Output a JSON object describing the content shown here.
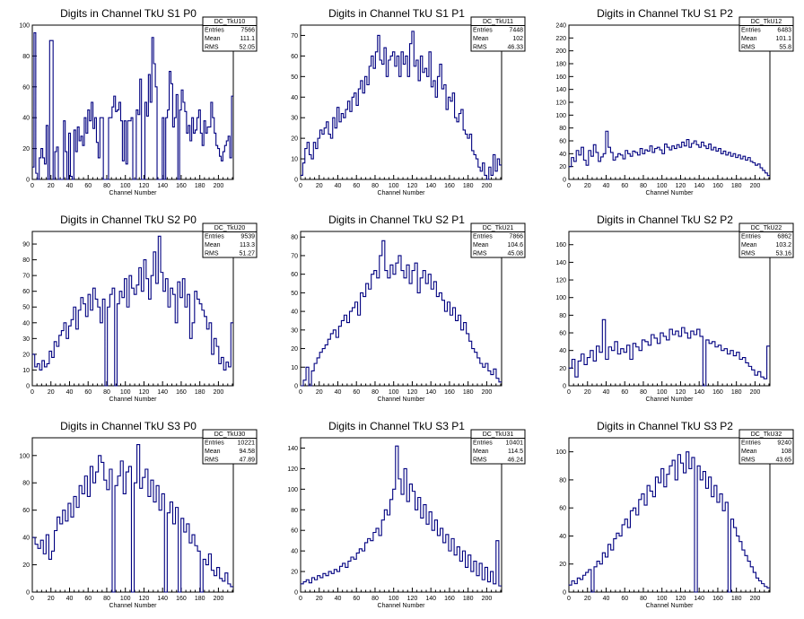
{
  "colors": {
    "line": "#000080",
    "axis": "#000000",
    "background": "#ffffff"
  },
  "stat_labels": {
    "entries": "Entries",
    "mean": "Mean",
    "rms": "RMS"
  },
  "chart_data": [
    {
      "type": "histogram",
      "title": "Digits in Channel TkU S1 P0",
      "xlabel": "Channel Number",
      "stats": {
        "name": "DC_TkU10",
        "entries": "7566",
        "mean": "111.1",
        "rms": "52.05"
      },
      "xlim": [
        0,
        216
      ],
      "ylim": [
        0,
        100
      ],
      "xticks": [
        0,
        20,
        40,
        60,
        80,
        100,
        120,
        140,
        160,
        180,
        200
      ],
      "yticks": [
        0,
        20,
        40,
        60,
        80,
        100
      ],
      "values": [
        8,
        95,
        4,
        0,
        14,
        20,
        14,
        10,
        35,
        0,
        90,
        90,
        0,
        18,
        21,
        0,
        0,
        0,
        38,
        18,
        0,
        30,
        2,
        0,
        32,
        18,
        34,
        25,
        28,
        22,
        40,
        30,
        45,
        38,
        50,
        33,
        40,
        24,
        14,
        40,
        40,
        0,
        0,
        0,
        40,
        40,
        47,
        54,
        44,
        45,
        50,
        38,
        12,
        38,
        10,
        38,
        38,
        40,
        0,
        0,
        45,
        42,
        65,
        0,
        0,
        50,
        41,
        68,
        50,
        92,
        75,
        60,
        0,
        0,
        0,
        40,
        0,
        40,
        45,
        70,
        62,
        34,
        40,
        55,
        0,
        45,
        58,
        50,
        44,
        30,
        35,
        25,
        40,
        30,
        32,
        40,
        45,
        30,
        22,
        38,
        30,
        34,
        34,
        50,
        40,
        30,
        22,
        20,
        15,
        12,
        18,
        22,
        25,
        28,
        14,
        54
      ]
    },
    {
      "type": "histogram",
      "title": "Digits in Channel TkU S1 P1",
      "xlabel": "Channel Number",
      "stats": {
        "name": "DC_TkU11",
        "entries": "7448",
        "mean": "102",
        "rms": "46.33"
      },
      "xlim": [
        0,
        216
      ],
      "ylim": [
        0,
        75
      ],
      "xticks": [
        0,
        20,
        40,
        60,
        80,
        100,
        120,
        140,
        160,
        180,
        200
      ],
      "yticks": [
        0,
        10,
        20,
        30,
        40,
        50,
        60,
        70
      ],
      "values": [
        2,
        8,
        15,
        18,
        12,
        10,
        18,
        15,
        20,
        24,
        22,
        25,
        28,
        22,
        20,
        30,
        25,
        35,
        28,
        32,
        30,
        34,
        38,
        33,
        40,
        42,
        36,
        44,
        48,
        42,
        50,
        46,
        55,
        60,
        54,
        62,
        70,
        58,
        56,
        64,
        50,
        58,
        60,
        62,
        55,
        60,
        50,
        62,
        56,
        60,
        50,
        66,
        72,
        55,
        58,
        48,
        60,
        52,
        54,
        50,
        62,
        45,
        48,
        40,
        50,
        56,
        44,
        46,
        34,
        40,
        38,
        42,
        30,
        28,
        32,
        34,
        24,
        22,
        20,
        22,
        14,
        12,
        10,
        6,
        4,
        8,
        2,
        0,
        6,
        2,
        12,
        4,
        10,
        7
      ]
    },
    {
      "type": "histogram",
      "title": "Digits in Channel TkU S1 P2",
      "xlabel": "Channel Number",
      "stats": {
        "name": "DC_TkU12",
        "entries": "6483",
        "mean": "101.1",
        "rms": "55.8"
      },
      "xlim": [
        0,
        216
      ],
      "ylim": [
        0,
        240
      ],
      "xticks": [
        0,
        20,
        40,
        60,
        80,
        100,
        120,
        140,
        160,
        180,
        200
      ],
      "yticks": [
        0,
        20,
        40,
        60,
        80,
        100,
        120,
        140,
        160,
        180,
        200,
        220,
        240
      ],
      "values": [
        20,
        34,
        28,
        45,
        38,
        50,
        30,
        22,
        45,
        36,
        54,
        42,
        28,
        35,
        40,
        75,
        50,
        42,
        30,
        35,
        40,
        38,
        32,
        45,
        40,
        36,
        44,
        42,
        38,
        48,
        40,
        46,
        44,
        52,
        42,
        48,
        50,
        46,
        40,
        55,
        50,
        46,
        52,
        48,
        54,
        50,
        58,
        52,
        62,
        50,
        56,
        60,
        54,
        50,
        58,
        52,
        48,
        55,
        46,
        50,
        44,
        48,
        40,
        44,
        38,
        42,
        36,
        40,
        34,
        38,
        32,
        36,
        30,
        34,
        28,
        26,
        22,
        24,
        18,
        14,
        10,
        6
      ]
    },
    {
      "type": "histogram",
      "title": "Digits in Channel TkU S2 P0",
      "xlabel": "Channel Number",
      "stats": {
        "name": "DC_TkU20",
        "entries": "9539",
        "mean": "113.3",
        "rms": "51.27"
      },
      "xlim": [
        0,
        216
      ],
      "ylim": [
        0,
        98
      ],
      "xticks": [
        0,
        20,
        40,
        60,
        80,
        100,
        120,
        140,
        160,
        180,
        200
      ],
      "yticks": [
        0,
        10,
        20,
        30,
        40,
        50,
        60,
        70,
        80,
        90
      ],
      "values": [
        20,
        12,
        14,
        10,
        16,
        12,
        14,
        22,
        18,
        28,
        25,
        32,
        35,
        40,
        30,
        38,
        42,
        50,
        36,
        48,
        56,
        52,
        44,
        58,
        48,
        62,
        55,
        50,
        40,
        55,
        0,
        50,
        58,
        62,
        0,
        52,
        60,
        56,
        68,
        50,
        70,
        62,
        58,
        64,
        75,
        60,
        80,
        68,
        55,
        70,
        85,
        65,
        95,
        72,
        60,
        68,
        50,
        62,
        58,
        40,
        66,
        56,
        68,
        50,
        58,
        30,
        40,
        60,
        55,
        52,
        48,
        44,
        36,
        40,
        20,
        30,
        25,
        14,
        18,
        10,
        15,
        12,
        40
      ]
    },
    {
      "type": "histogram",
      "title": "Digits in Channel TkU S2 P1",
      "xlabel": "Channel Number",
      "stats": {
        "name": "DC_TkU21",
        "entries": "7866",
        "mean": "104.6",
        "rms": "45.08"
      },
      "xlim": [
        0,
        216
      ],
      "ylim": [
        0,
        83
      ],
      "xticks": [
        0,
        20,
        40,
        60,
        80,
        100,
        120,
        140,
        160,
        180,
        200
      ],
      "yticks": [
        0,
        10,
        20,
        30,
        40,
        50,
        60,
        70,
        80
      ],
      "values": [
        0,
        3,
        10,
        0,
        8,
        12,
        15,
        18,
        20,
        22,
        25,
        28,
        30,
        26,
        32,
        35,
        38,
        34,
        40,
        42,
        45,
        38,
        50,
        48,
        55,
        52,
        60,
        62,
        58,
        70,
        78,
        62,
        58,
        65,
        60,
        66,
        70,
        62,
        58,
        65,
        55,
        62,
        66,
        50,
        58,
        62,
        55,
        60,
        52,
        56,
        48,
        50,
        46,
        40,
        45,
        38,
        42,
        35,
        38,
        30,
        34,
        28,
        24,
        20,
        18,
        15,
        12,
        10,
        12,
        8,
        6,
        9,
        4,
        2
      ]
    },
    {
      "type": "histogram",
      "title": "Digits in Channel TkU S2 P2",
      "xlabel": "Channel Number",
      "stats": {
        "name": "DC_TkU22",
        "entries": "6862",
        "mean": "103.2",
        "rms": "53.16"
      },
      "xlim": [
        0,
        216
      ],
      "ylim": [
        0,
        175
      ],
      "xticks": [
        0,
        20,
        40,
        60,
        80,
        100,
        120,
        140,
        160,
        180,
        200
      ],
      "yticks": [
        0,
        20,
        40,
        60,
        80,
        100,
        120,
        140,
        160
      ],
      "values": [
        20,
        30,
        10,
        28,
        36,
        24,
        32,
        40,
        28,
        45,
        38,
        75,
        30,
        44,
        40,
        50,
        36,
        42,
        38,
        46,
        30,
        48,
        44,
        40,
        52,
        50,
        46,
        58,
        54,
        48,
        60,
        56,
        52,
        64,
        58,
        62,
        56,
        66,
        60,
        54,
        62,
        58,
        64,
        56,
        0,
        52,
        48,
        50,
        44,
        46,
        40,
        42,
        36,
        40,
        34,
        38,
        30,
        32,
        26,
        22,
        18,
        12,
        16,
        10,
        8,
        45
      ]
    },
    {
      "type": "histogram",
      "title": "Digits in Channel TkU S3 P0",
      "xlabel": "Channel Number",
      "stats": {
        "name": "DC_TkU30",
        "entries": "10221",
        "mean": "94.58",
        "rms": "47.89"
      },
      "xlim": [
        0,
        216
      ],
      "ylim": [
        0,
        113
      ],
      "xticks": [
        0,
        20,
        40,
        60,
        80,
        100,
        120,
        140,
        160,
        180,
        200
      ],
      "yticks": [
        0,
        20,
        40,
        60,
        80,
        100
      ],
      "values": [
        40,
        35,
        32,
        38,
        28,
        42,
        24,
        30,
        45,
        55,
        50,
        60,
        52,
        65,
        55,
        70,
        62,
        78,
        72,
        85,
        70,
        92,
        80,
        88,
        100,
        95,
        82,
        75,
        90,
        0,
        78,
        85,
        96,
        72,
        88,
        92,
        0,
        80,
        108,
        76,
        84,
        90,
        70,
        82,
        66,
        78,
        60,
        72,
        0,
        58,
        66,
        50,
        62,
        0,
        54,
        44,
        50,
        36,
        42,
        34,
        30,
        0,
        24,
        20,
        28,
        16,
        12,
        18,
        10,
        8,
        14,
        6,
        4
      ]
    },
    {
      "type": "histogram",
      "title": "Digits in Channel TkU S3 P1",
      "xlabel": "Channel Number",
      "stats": {
        "name": "DC_TkU31",
        "entries": "10401",
        "mean": "114.5",
        "rms": "46.24"
      },
      "xlim": [
        0,
        216
      ],
      "ylim": [
        0,
        150
      ],
      "xticks": [
        0,
        20,
        40,
        60,
        80,
        100,
        120,
        140,
        160,
        180,
        200
      ],
      "yticks": [
        0,
        20,
        40,
        60,
        80,
        100,
        120,
        140
      ],
      "values": [
        8,
        10,
        12,
        9,
        14,
        12,
        16,
        14,
        18,
        16,
        20,
        18,
        22,
        20,
        25,
        28,
        24,
        30,
        34,
        32,
        38,
        42,
        40,
        48,
        52,
        50,
        58,
        62,
        55,
        70,
        80,
        75,
        90,
        100,
        142,
        110,
        95,
        120,
        88,
        105,
        98,
        80,
        92,
        72,
        85,
        66,
        78,
        60,
        70,
        55,
        62,
        48,
        56,
        40,
        52,
        36,
        44,
        30,
        40,
        24,
        36,
        20,
        30,
        16,
        28,
        12,
        24,
        10,
        20,
        8,
        50,
        6
      ]
    },
    {
      "type": "histogram",
      "title": "Digits in Channel TkU S3 P2",
      "xlabel": "Channel Number",
      "stats": {
        "name": "DC_TkU32",
        "entries": "9240",
        "mean": "108",
        "rms": "43.65"
      },
      "xlim": [
        0,
        216
      ],
      "ylim": [
        0,
        110
      ],
      "xticks": [
        0,
        20,
        40,
        60,
        80,
        100,
        120,
        140,
        160,
        180,
        200
      ],
      "yticks": [
        0,
        20,
        40,
        60,
        80,
        100
      ],
      "values": [
        5,
        8,
        6,
        10,
        9,
        12,
        14,
        16,
        0,
        18,
        22,
        20,
        28,
        25,
        34,
        30,
        38,
        42,
        40,
        48,
        52,
        46,
        58,
        60,
        55,
        66,
        70,
        62,
        76,
        72,
        68,
        82,
        78,
        88,
        75,
        84,
        90,
        94,
        80,
        98,
        92,
        85,
        100,
        88,
        96,
        0,
        90,
        80,
        86,
        74,
        82,
        68,
        76,
        64,
        70,
        58,
        64,
        0,
        52,
        46,
        40,
        36,
        30,
        26,
        22,
        18,
        14,
        10,
        8,
        6,
        4,
        3
      ]
    }
  ]
}
